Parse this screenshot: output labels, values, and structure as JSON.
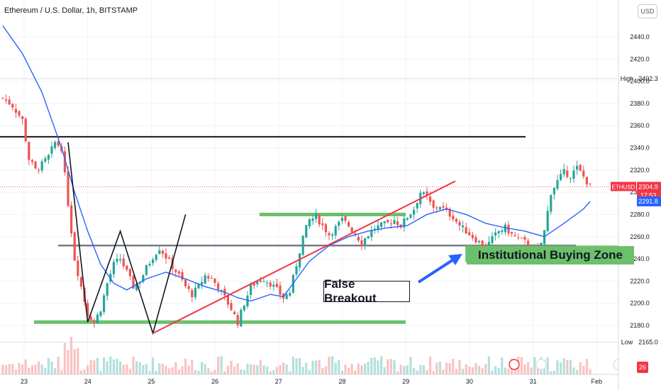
{
  "header": {
    "title": "Ethereum / U.S. Dollar, 1h, BITSTAMP",
    "currency_button": "USD"
  },
  "price_axis": {
    "ticks": [
      "2440.0",
      "2420.0",
      "2400.0",
      "2380.0",
      "2360.0",
      "2340.0",
      "2320.0",
      "2300.0",
      "2280.0",
      "2260.0",
      "2240.0",
      "2220.0",
      "2200.0",
      "2180.0"
    ],
    "high_label": "High",
    "high_value": "2402.3",
    "low_label": "Low",
    "low_value": "2165.0",
    "symbol_label": "ETHUSD",
    "last_price": "2304.9",
    "countdown": "17:53",
    "ma_value": "2291.8"
  },
  "time_axis": {
    "ticks": [
      "23",
      "24",
      "25",
      "26",
      "27",
      "28",
      "29",
      "30",
      "31",
      "Feb"
    ]
  },
  "annotations": {
    "false_breakout": "False Breakout",
    "buying_zone": "Institutional Buying Zone"
  },
  "badges": {
    "count": "26"
  },
  "colors": {
    "up": "#26a69a",
    "down": "#ef5350",
    "ma": "#2962ff",
    "zone": "#6cc06c",
    "trendline": "#f23645",
    "level": "#131722",
    "mid_level": "#787b86"
  },
  "chart_data": {
    "type": "candlestick",
    "title": "Ethereum / U.S. Dollar, 1h, BITSTAMP",
    "ylim": [
      2162,
      2458
    ],
    "x_range": [
      "23",
      "Feb"
    ],
    "grid": true,
    "legend": "none",
    "close_path": [
      [
        0,
        2385
      ],
      [
        3,
        2378
      ],
      [
        6,
        2365
      ],
      [
        8,
        2330
      ],
      [
        10,
        2320
      ],
      [
        12,
        2325
      ],
      [
        14,
        2332
      ],
      [
        16,
        2345
      ],
      [
        18,
        2340
      ],
      [
        20,
        2290
      ],
      [
        22,
        2240
      ],
      [
        24,
        2215
      ],
      [
        26,
        2190
      ],
      [
        28,
        2183
      ],
      [
        30,
        2195
      ],
      [
        32,
        2218
      ],
      [
        34,
        2235
      ],
      [
        36,
        2240
      ],
      [
        38,
        2228
      ],
      [
        40,
        2215
      ],
      [
        42,
        2220
      ],
      [
        44,
        2232
      ],
      [
        46,
        2242
      ],
      [
        48,
        2250
      ],
      [
        50,
        2242
      ],
      [
        52,
        2233
      ],
      [
        54,
        2225
      ],
      [
        56,
        2215
      ],
      [
        58,
        2208
      ],
      [
        60,
        2215
      ],
      [
        62,
        2225
      ],
      [
        64,
        2222
      ],
      [
        66,
        2215
      ],
      [
        68,
        2205
      ],
      [
        70,
        2195
      ],
      [
        72,
        2183
      ],
      [
        74,
        2200
      ],
      [
        76,
        2215
      ],
      [
        78,
        2220
      ],
      [
        80,
        2222
      ],
      [
        82,
        2218
      ],
      [
        84,
        2212
      ],
      [
        86,
        2205
      ],
      [
        88,
        2210
      ],
      [
        90,
        2235
      ],
      [
        92,
        2260
      ],
      [
        94,
        2275
      ],
      [
        96,
        2278
      ],
      [
        98,
        2270
      ],
      [
        100,
        2262
      ],
      [
        102,
        2268
      ],
      [
        104,
        2275
      ],
      [
        106,
        2270
      ],
      [
        108,
        2262
      ],
      [
        110,
        2255
      ],
      [
        112,
        2262
      ],
      [
        114,
        2268
      ],
      [
        116,
        2270
      ],
      [
        118,
        2272
      ],
      [
        120,
        2275
      ],
      [
        122,
        2270
      ],
      [
        124,
        2278
      ],
      [
        126,
        2285
      ],
      [
        128,
        2300
      ],
      [
        130,
        2295
      ],
      [
        132,
        2285
      ],
      [
        134,
        2288
      ],
      [
        136,
        2282
      ],
      [
        138,
        2278
      ],
      [
        140,
        2270
      ],
      [
        142,
        2265
      ],
      [
        144,
        2260
      ],
      [
        146,
        2255
      ],
      [
        148,
        2250
      ],
      [
        150,
        2258
      ],
      [
        152,
        2265
      ],
      [
        154,
        2268
      ],
      [
        156,
        2262
      ],
      [
        158,
        2258
      ],
      [
        160,
        2255
      ],
      [
        162,
        2250
      ],
      [
        164,
        2244
      ],
      [
        166,
        2265
      ],
      [
        168,
        2300
      ],
      [
        170,
        2310
      ],
      [
        172,
        2318
      ],
      [
        174,
        2315
      ],
      [
        176,
        2322
      ],
      [
        178,
        2314
      ],
      [
        180,
        2305
      ]
    ],
    "moving_average": [
      [
        0,
        2450
      ],
      [
        6,
        2425
      ],
      [
        12,
        2390
      ],
      [
        18,
        2340
      ],
      [
        22,
        2300
      ],
      [
        26,
        2265
      ],
      [
        30,
        2235
      ],
      [
        34,
        2218
      ],
      [
        38,
        2212
      ],
      [
        44,
        2222
      ],
      [
        50,
        2228
      ],
      [
        56,
        2222
      ],
      [
        62,
        2215
      ],
      [
        68,
        2210
      ],
      [
        72,
        2205
      ],
      [
        76,
        2202
      ],
      [
        82,
        2208
      ],
      [
        86,
        2206
      ],
      [
        90,
        2222
      ],
      [
        94,
        2238
      ],
      [
        100,
        2252
      ],
      [
        106,
        2260
      ],
      [
        112,
        2265
      ],
      [
        118,
        2268
      ],
      [
        124,
        2270
      ],
      [
        130,
        2280
      ],
      [
        136,
        2285
      ],
      [
        142,
        2280
      ],
      [
        148,
        2272
      ],
      [
        154,
        2268
      ],
      [
        160,
        2265
      ],
      [
        166,
        2260
      ],
      [
        172,
        2272
      ],
      [
        178,
        2285
      ],
      [
        180,
        2291.8
      ]
    ],
    "levels": {
      "resistance": 2350,
      "mid_support": 2252,
      "support_bottom": 2183,
      "zone_top_band": 2280,
      "buying_zone": [
        2237,
        2252
      ]
    },
    "day_ticks": {
      "23": 0,
      "24": 19.5,
      "25": 39,
      "26": 58.5,
      "27": 78,
      "28": 97.5,
      "29": 117,
      "30": 136.5,
      "31": 156,
      "Feb": 175.5
    },
    "zigzag_pattern": [
      [
        20,
        2345
      ],
      [
        26,
        2183
      ],
      [
        36,
        2265
      ],
      [
        46,
        2173
      ],
      [
        56,
        2280
      ]
    ],
    "trendline": [
      [
        46,
        2173
      ],
      [
        130,
        2310
      ]
    ],
    "arrow": {
      "from": [
        118,
        2218
      ],
      "to": [
        130,
        2248
      ]
    },
    "high": 2402.3,
    "low": 2165.0,
    "last": 2304.9
  }
}
